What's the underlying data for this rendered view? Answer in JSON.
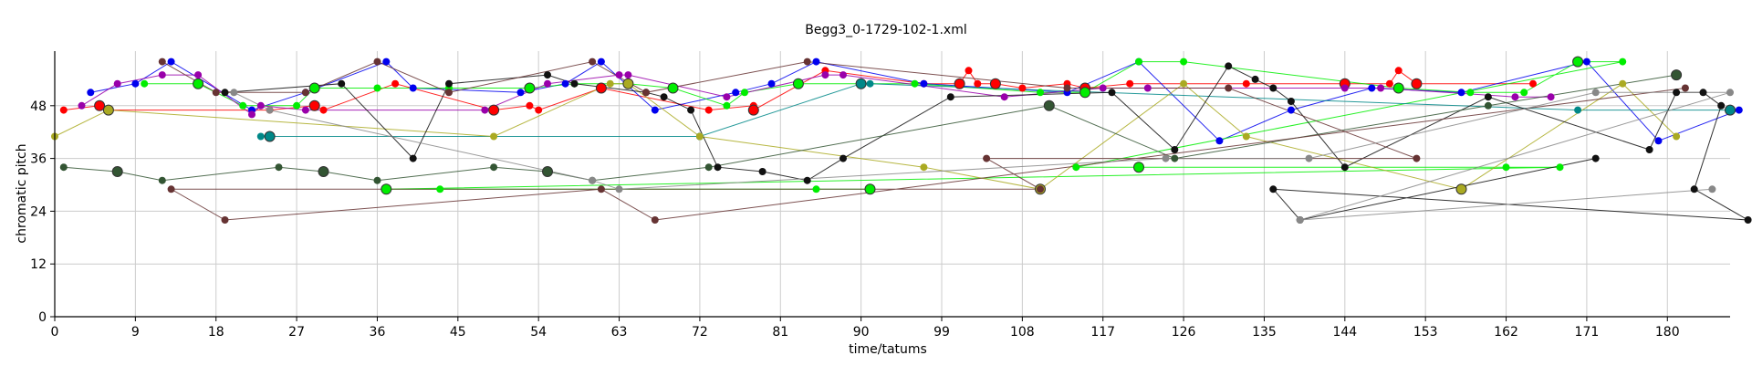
{
  "chart_data": {
    "type": "scatter",
    "title": "Begg3_0-1729-102-1.xml",
    "xlabel": "time/tatums",
    "ylabel": "chromatic pitch",
    "xlim": [
      0,
      187
    ],
    "ylim": [
      0,
      60
    ],
    "xticks": [
      0,
      9,
      18,
      27,
      36,
      45,
      54,
      63,
      72,
      81,
      90,
      99,
      108,
      117,
      126,
      135,
      144,
      153,
      162,
      171,
      180
    ],
    "yticks": [
      0,
      12,
      24,
      36,
      48
    ],
    "grid": true,
    "series": [
      {
        "color": "#ff0000",
        "points": [
          [
            1,
            47
          ],
          [
            5,
            48
          ],
          [
            6,
            47
          ],
          [
            24,
            47
          ],
          [
            29,
            48
          ],
          [
            30,
            47
          ],
          [
            38,
            53
          ],
          [
            49,
            47
          ],
          [
            53,
            48
          ],
          [
            54,
            47
          ],
          [
            61,
            52
          ],
          [
            73,
            47
          ],
          [
            78,
            48
          ],
          [
            78,
            47
          ],
          [
            86,
            56
          ],
          [
            97,
            53
          ],
          [
            101,
            53
          ],
          [
            102,
            56
          ],
          [
            103,
            53
          ],
          [
            105,
            53
          ],
          [
            108,
            52
          ],
          [
            113,
            53
          ],
          [
            115,
            52
          ],
          [
            120,
            53
          ],
          [
            133,
            53
          ],
          [
            144,
            53
          ],
          [
            149,
            53
          ],
          [
            150,
            56
          ],
          [
            152,
            53
          ],
          [
            165,
            53
          ]
        ]
      },
      {
        "color": "#0000ee",
        "points": [
          [
            4,
            51
          ],
          [
            9,
            53
          ],
          [
            13,
            58
          ],
          [
            22,
            47
          ],
          [
            28,
            51
          ],
          [
            37,
            58
          ],
          [
            40,
            52
          ],
          [
            52,
            51
          ],
          [
            57,
            53
          ],
          [
            61,
            58
          ],
          [
            67,
            47
          ],
          [
            76,
            51
          ],
          [
            80,
            53
          ],
          [
            85,
            58
          ],
          [
            97,
            53
          ],
          [
            113,
            51
          ],
          [
            121,
            58
          ],
          [
            130,
            40
          ],
          [
            138,
            47
          ],
          [
            147,
            52
          ],
          [
            157,
            51
          ],
          [
            171,
            58
          ],
          [
            179,
            40
          ],
          [
            188,
            47
          ]
        ]
      },
      {
        "color": "#00ee00",
        "points": [
          [
            10,
            53
          ],
          [
            16,
            53
          ],
          [
            21,
            48
          ],
          [
            27,
            48
          ],
          [
            29,
            52
          ],
          [
            36,
            52
          ],
          [
            44,
            52
          ],
          [
            53,
            52
          ],
          [
            58,
            53
          ],
          [
            64,
            53
          ],
          [
            69,
            52
          ],
          [
            75,
            48
          ],
          [
            77,
            51
          ],
          [
            83,
            53
          ],
          [
            96,
            53
          ],
          [
            110,
            51
          ],
          [
            115,
            51
          ],
          [
            121,
            58
          ],
          [
            126,
            58
          ],
          [
            150,
            52
          ],
          [
            158,
            51
          ],
          [
            164,
            51
          ],
          [
            170,
            58
          ],
          [
            175,
            58
          ],
          [
            114,
            34
          ],
          [
            121,
            34
          ],
          [
            162,
            34
          ],
          [
            168,
            34
          ],
          [
            37,
            29
          ],
          [
            43,
            29
          ],
          [
            85,
            29
          ],
          [
            91,
            29
          ]
        ]
      },
      {
        "color": "#9900aa",
        "points": [
          [
            3,
            48
          ],
          [
            7,
            53
          ],
          [
            12,
            55
          ],
          [
            16,
            55
          ],
          [
            22,
            46
          ],
          [
            23,
            48
          ],
          [
            28,
            47
          ],
          [
            48,
            47
          ],
          [
            55,
            53
          ],
          [
            63,
            55
          ],
          [
            64,
            55
          ],
          [
            75,
            50
          ],
          [
            86,
            55
          ],
          [
            88,
            55
          ],
          [
            106,
            50
          ],
          [
            117,
            52
          ],
          [
            122,
            52
          ],
          [
            144,
            52
          ],
          [
            148,
            52
          ],
          [
            163,
            50
          ],
          [
            167,
            50
          ]
        ]
      },
      {
        "color": "#008888",
        "points": [
          [
            23,
            41
          ],
          [
            24,
            41
          ],
          [
            72,
            41
          ],
          [
            72,
            41
          ],
          [
            90,
            53
          ],
          [
            91,
            53
          ],
          [
            170,
            47
          ],
          [
            187,
            47
          ]
        ]
      },
      {
        "color": "#aaaa22",
        "points": [
          [
            0,
            41
          ],
          [
            6,
            47
          ],
          [
            49,
            41
          ],
          [
            62,
            53
          ],
          [
            64,
            53
          ],
          [
            72,
            41
          ],
          [
            97,
            34
          ],
          [
            110,
            29
          ],
          [
            126,
            53
          ],
          [
            133,
            41
          ],
          [
            157,
            29
          ],
          [
            175,
            53
          ],
          [
            181,
            41
          ]
        ]
      },
      {
        "color": "#111111",
        "points": [
          [
            19,
            51
          ],
          [
            32,
            53
          ],
          [
            40,
            36
          ],
          [
            44,
            53
          ],
          [
            55,
            55
          ],
          [
            58,
            53
          ],
          [
            66,
            51
          ],
          [
            68,
            50
          ],
          [
            71,
            47
          ],
          [
            74,
            34
          ],
          [
            79,
            33
          ],
          [
            84,
            31
          ],
          [
            88,
            36
          ],
          [
            100,
            50
          ],
          [
            118,
            51
          ],
          [
            125,
            38
          ],
          [
            131,
            57
          ],
          [
            134,
            54
          ],
          [
            136,
            52
          ],
          [
            138,
            49
          ],
          [
            144,
            34
          ],
          [
            160,
            50
          ],
          [
            178,
            38
          ],
          [
            181,
            51
          ],
          [
            184,
            51
          ],
          [
            186,
            48
          ],
          [
            183,
            29
          ],
          [
            189,
            22
          ],
          [
            136,
            29
          ],
          [
            139,
            22
          ],
          [
            172,
            36
          ]
        ]
      },
      {
        "color": "#335533",
        "points": [
          [
            1,
            34
          ],
          [
            7,
            33
          ],
          [
            12,
            31
          ],
          [
            25,
            34
          ],
          [
            30,
            33
          ],
          [
            36,
            31
          ],
          [
            49,
            34
          ],
          [
            55,
            33
          ],
          [
            60,
            31
          ],
          [
            73,
            34
          ],
          [
            111,
            48
          ],
          [
            125,
            36
          ],
          [
            160,
            48
          ],
          [
            181,
            55
          ]
        ]
      },
      {
        "color": "#663333",
        "points": [
          [
            12,
            58
          ],
          [
            18,
            51
          ],
          [
            28,
            51
          ],
          [
            36,
            58
          ],
          [
            44,
            51
          ],
          [
            60,
            58
          ],
          [
            66,
            51
          ],
          [
            84,
            58
          ],
          [
            113,
            52
          ],
          [
            131,
            52
          ],
          [
            152,
            36
          ],
          [
            104,
            36
          ],
          [
            110,
            29
          ],
          [
            13,
            29
          ],
          [
            19,
            22
          ],
          [
            61,
            29
          ],
          [
            67,
            22
          ],
          [
            182,
            52
          ]
        ]
      },
      {
        "color": "#888888",
        "points": [
          [
            20,
            51
          ],
          [
            24,
            47
          ],
          [
            60,
            31
          ],
          [
            63,
            29
          ],
          [
            124,
            36
          ],
          [
            140,
            36
          ],
          [
            172,
            51
          ],
          [
            187,
            51
          ],
          [
            139,
            22
          ],
          [
            185,
            29
          ]
        ]
      }
    ]
  }
}
